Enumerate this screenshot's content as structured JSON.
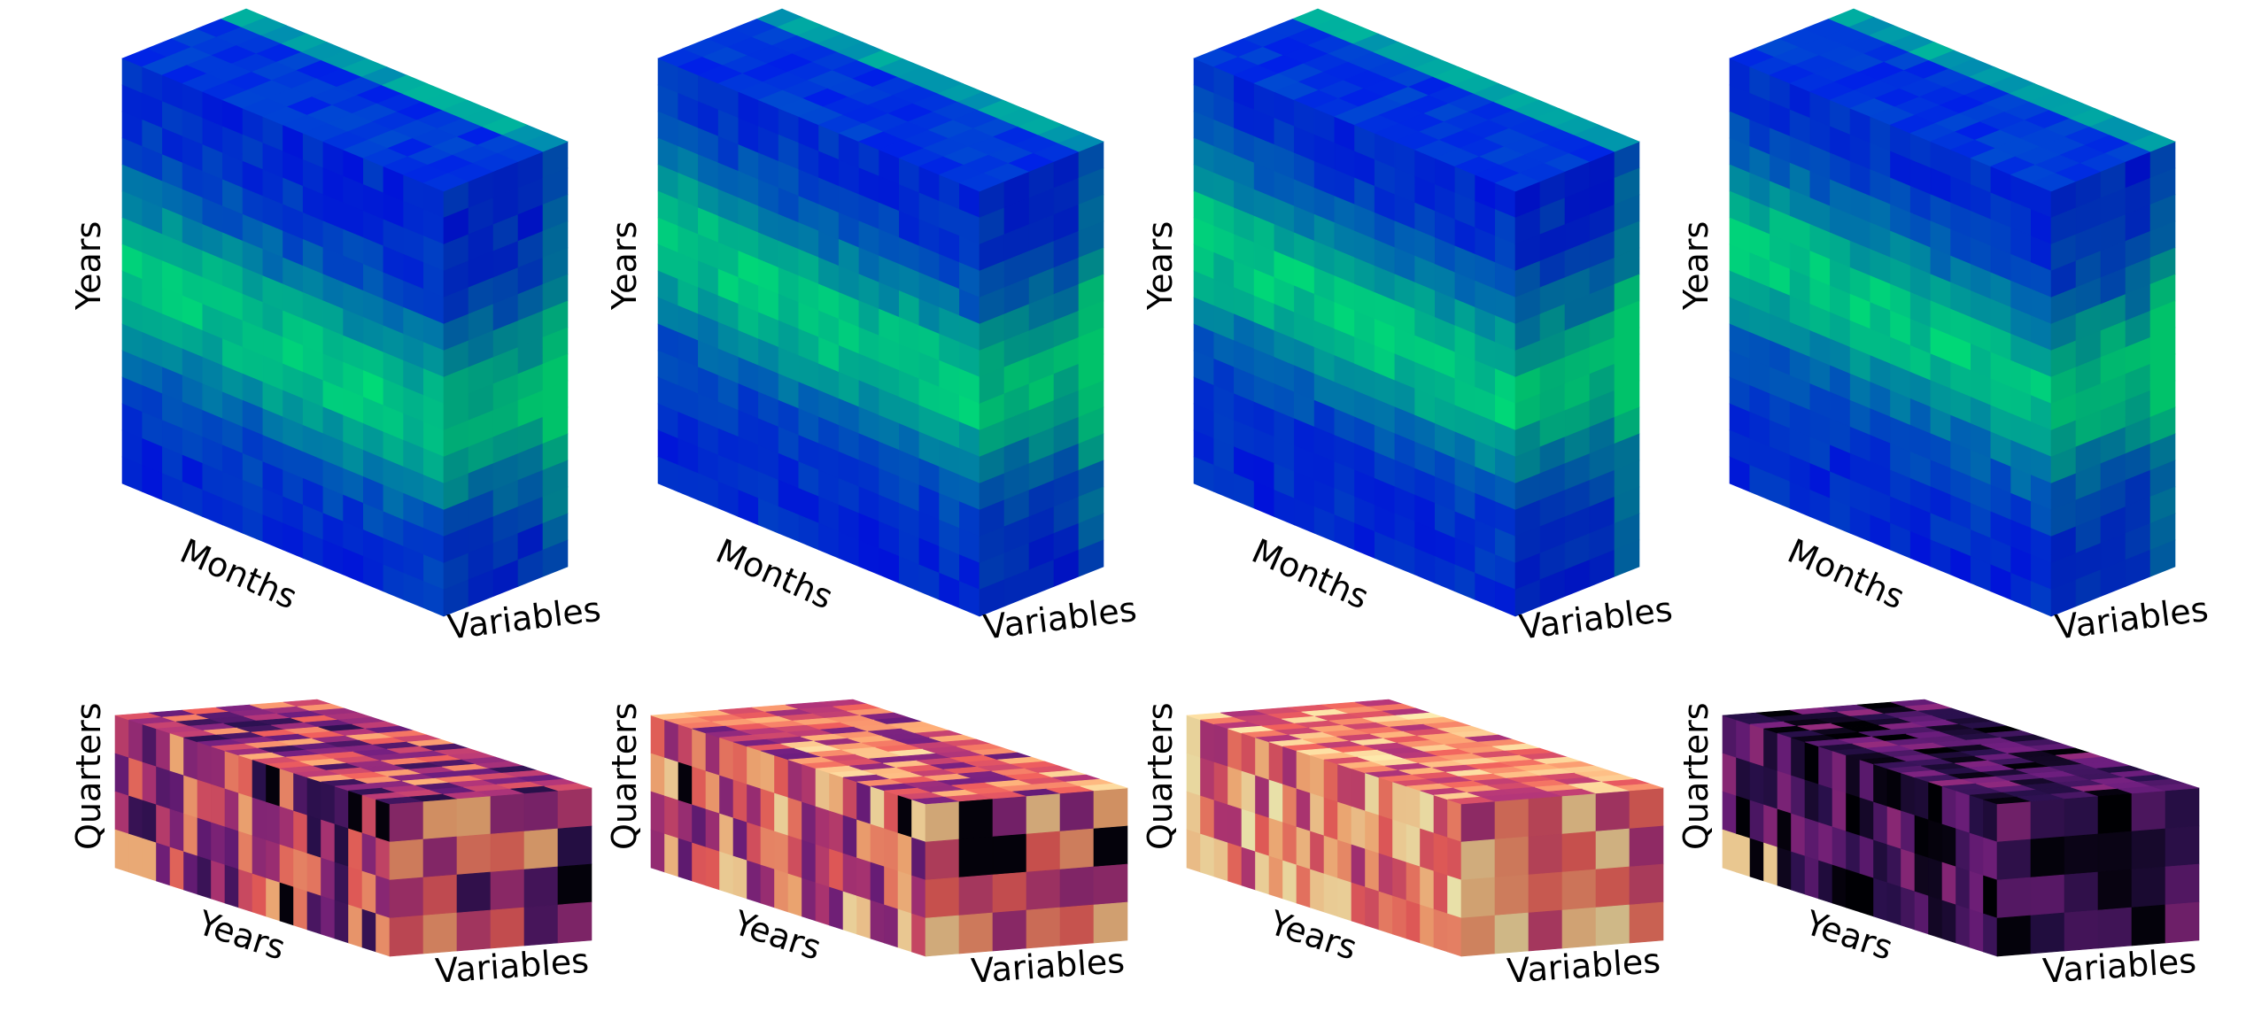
{
  "rows": [
    {
      "kind": "monthly",
      "colormap": "winter",
      "labels": {
        "vertical": "Years",
        "depth": "Months",
        "width": "Variables"
      },
      "cubes": [
        {
          "seed": 11
        },
        {
          "seed": 23
        },
        {
          "seed": 37
        },
        {
          "seed": 51
        }
      ]
    },
    {
      "kind": "quarterly",
      "colormap": "pink",
      "labels": {
        "vertical": "Quarters",
        "depth": "Years",
        "width": "Variables"
      },
      "cubes": [
        {
          "seed": 7,
          "mode": "mixed"
        },
        {
          "seed": 19,
          "mode": "mixed_light"
        },
        {
          "seed": 29,
          "mode": "light"
        },
        {
          "seed": 43,
          "mode": "dark"
        }
      ]
    }
  ],
  "colors": {
    "winter_low": "#0000ff",
    "winter_high": "#00ff80",
    "pink_stops": [
      "#000004",
      "#2c1151",
      "#721f81",
      "#b73779",
      "#f1605d",
      "#feb078",
      "#fcfdbf"
    ]
  }
}
